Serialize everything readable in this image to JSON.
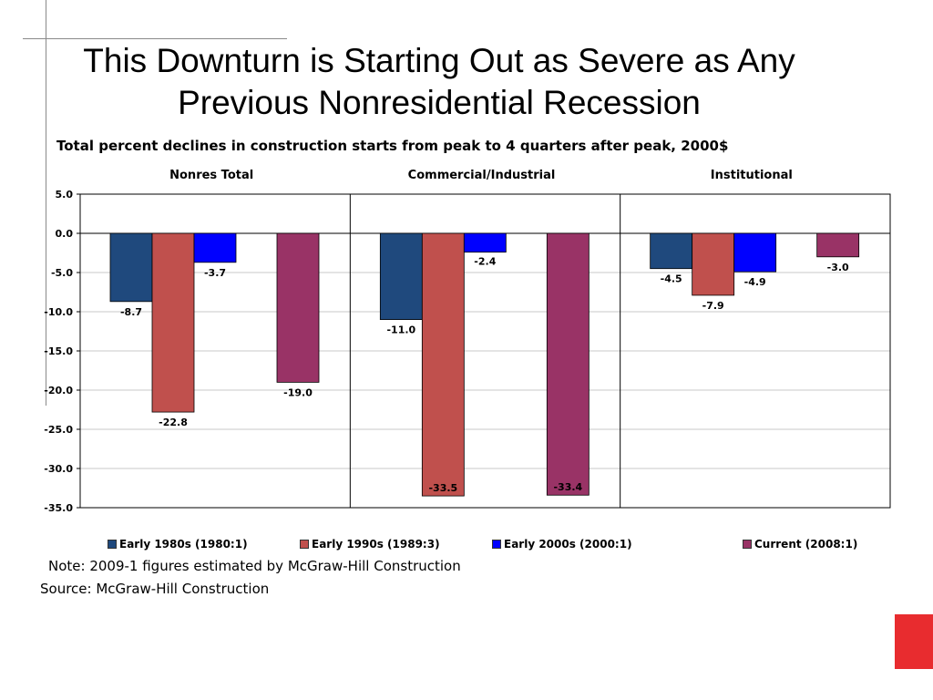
{
  "slide": {
    "title_line1": "This Downturn is Starting Out as Severe as Any",
    "title_line2": "Previous Nonresidential Recession",
    "note": "Note: 2009-1 figures estimated by McGraw-Hill Construction",
    "source": "Source: McGraw-Hill Construction",
    "accent_color": "#e82c2f"
  },
  "chart_data": {
    "type": "bar",
    "title": "Total percent declines in construction starts from peak to 4 quarters after peak, 2000$",
    "categories": [
      "Nonres Total",
      "Commercial/Industrial",
      "Institutional"
    ],
    "ylim": [
      -35,
      5
    ],
    "yticks": [
      "5.0",
      "0.0",
      "-5.0",
      "-10.0",
      "-15.0",
      "-20.0",
      "-25.0",
      "-30.0",
      "-35.0"
    ],
    "grid": true,
    "legend_position": "bottom",
    "series": [
      {
        "name": "Early 1980s (1980:1)",
        "color": "#1f497d",
        "values": [
          -8.7,
          -11.0,
          -4.5
        ],
        "labels": [
          "-8.7",
          "-11.0",
          "-4.5"
        ]
      },
      {
        "name": "Early 1990s (1989:3)",
        "color": "#c0504d",
        "values": [
          -22.8,
          -33.5,
          -7.9
        ],
        "labels": [
          "-22.8",
          "-33.5",
          "-7.9"
        ]
      },
      {
        "name": "Early 2000s (2000:1)",
        "color": "#0000ff",
        "values": [
          -3.7,
          -2.4,
          -4.9
        ],
        "labels": [
          "-3.7",
          "-2.4",
          "-4.9"
        ]
      },
      {
        "name": "Current (2008:1)",
        "color": "#993366",
        "values": [
          -19.0,
          -33.4,
          -3.0
        ],
        "labels": [
          "-19.0",
          "-33.4",
          "-3.0"
        ]
      }
    ]
  }
}
